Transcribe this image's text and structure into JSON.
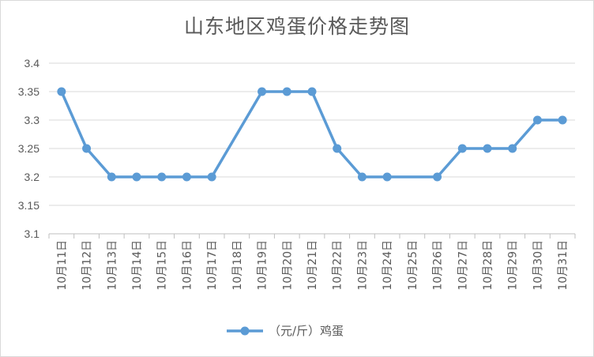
{
  "chart_data": {
    "type": "line",
    "title": "山东地区鸡蛋价格走势图",
    "categories": [
      "10月11日",
      "10月12日",
      "10月13日",
      "10月14日",
      "10月15日",
      "10月16日",
      "10月17日",
      "10月18日",
      "10月19日",
      "10月20日",
      "10月21日",
      "10月22日",
      "10月23日",
      "10月24日",
      "10月25日",
      "10月26日",
      "10月27日",
      "10月28日",
      "10月29日",
      "10月30日",
      "10月31日"
    ],
    "series": [
      {
        "name": "（元/斤）鸡蛋",
        "values": [
          3.35,
          3.25,
          3.2,
          3.2,
          3.2,
          3.2,
          3.2,
          null,
          3.35,
          3.35,
          3.35,
          3.25,
          3.2,
          3.2,
          null,
          3.2,
          3.25,
          3.25,
          3.25,
          3.3,
          3.3
        ]
      }
    ],
    "yticks": [
      "3.1",
      "3.15",
      "3.2",
      "3.25",
      "3.3",
      "3.35",
      "3.4"
    ],
    "ylim": [
      3.1,
      3.4
    ],
    "grid": true,
    "legend": "bottom",
    "colors": {
      "line": "#5b9bd5",
      "grid": "#d9d9d9",
      "axis": "#bfbfbf",
      "text": "#595959"
    }
  }
}
